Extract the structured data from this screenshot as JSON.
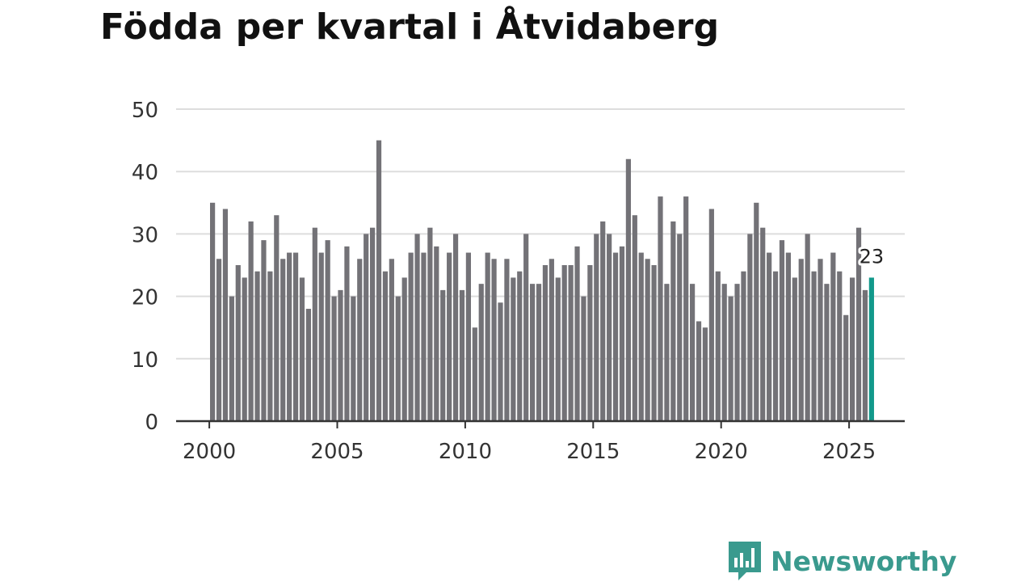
{
  "title": "Födda per kvartal i Åtvidaberg",
  "brand": {
    "name": "Newsworthy",
    "color": "#3a9a8e"
  },
  "colors": {
    "bar": "#737277",
    "highlight": "#12998b",
    "grid": "#dddddd",
    "axis": "#333333"
  },
  "chart_data": {
    "type": "bar",
    "title": "Födda per kvartal i Åtvidaberg",
    "xlabel": "",
    "ylabel": "",
    "ylim": [
      0,
      50
    ],
    "yticks": [
      0,
      10,
      20,
      30,
      40,
      50
    ],
    "xticks": [
      2000,
      2005,
      2010,
      2015,
      2020,
      2025
    ],
    "start_year": 2000,
    "periods_per_year": 4,
    "highlight_last": true,
    "highlight_label": "23",
    "values": [
      35,
      26,
      34,
      20,
      25,
      23,
      32,
      24,
      29,
      24,
      33,
      26,
      27,
      27,
      23,
      18,
      31,
      27,
      29,
      20,
      21,
      28,
      20,
      26,
      30,
      31,
      45,
      24,
      26,
      20,
      23,
      27,
      30,
      27,
      31,
      28,
      21,
      27,
      30,
      21,
      27,
      15,
      22,
      27,
      26,
      19,
      26,
      23,
      24,
      30,
      22,
      22,
      25,
      26,
      23,
      25,
      25,
      28,
      20,
      25,
      30,
      32,
      30,
      27,
      28,
      42,
      33,
      27,
      26,
      25,
      36,
      22,
      32,
      30,
      36,
      22,
      16,
      15,
      34,
      24,
      22,
      20,
      22,
      24,
      30,
      35,
      31,
      27,
      24,
      29,
      27,
      23,
      26,
      30,
      24,
      26,
      22,
      27,
      24,
      17,
      23,
      31,
      21,
      23
    ]
  }
}
